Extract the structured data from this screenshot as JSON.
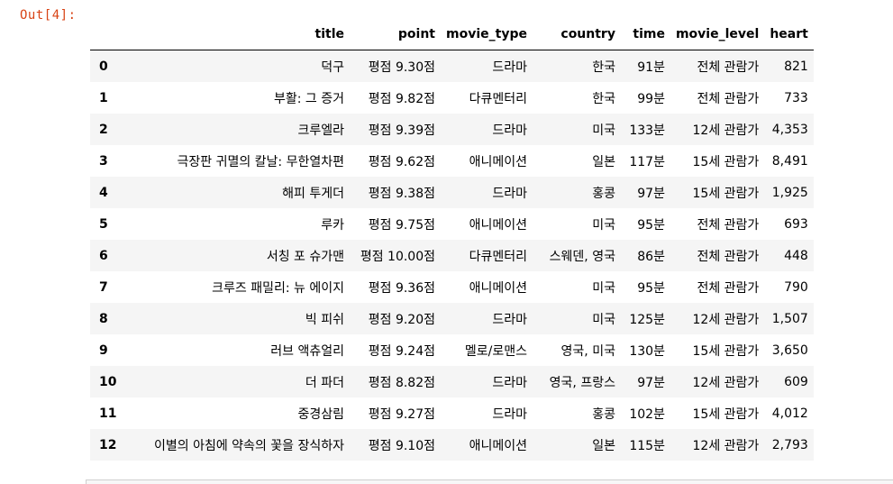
{
  "output_prompt": "Out[4]:",
  "columns": [
    "title",
    "point",
    "movie_type",
    "country",
    "time",
    "movie_level",
    "heart"
  ],
  "rows": [
    {
      "index": "0",
      "title": "덕구",
      "point": "평점 9.30점",
      "movie_type": "드라마",
      "country": "한국",
      "time": "91분",
      "movie_level": "전체 관람가",
      "heart": "821"
    },
    {
      "index": "1",
      "title": "부활: 그 증거",
      "point": "평점 9.82점",
      "movie_type": "다큐멘터리",
      "country": "한국",
      "time": "99분",
      "movie_level": "전체 관람가",
      "heart": "733"
    },
    {
      "index": "2",
      "title": "크루엘라",
      "point": "평점 9.39점",
      "movie_type": "드라마",
      "country": "미국",
      "time": "133분",
      "movie_level": "12세 관람가",
      "heart": "4,353"
    },
    {
      "index": "3",
      "title": "극장판 귀멸의 칼날: 무한열차편",
      "point": "평점 9.62점",
      "movie_type": "애니메이션",
      "country": "일본",
      "time": "117분",
      "movie_level": "15세 관람가",
      "heart": "8,491"
    },
    {
      "index": "4",
      "title": "해피 투게더",
      "point": "평점 9.38점",
      "movie_type": "드라마",
      "country": "홍콩",
      "time": "97분",
      "movie_level": "15세 관람가",
      "heart": "1,925"
    },
    {
      "index": "5",
      "title": "루카",
      "point": "평점 9.75점",
      "movie_type": "애니메이션",
      "country": "미국",
      "time": "95분",
      "movie_level": "전체 관람가",
      "heart": "693"
    },
    {
      "index": "6",
      "title": "서칭 포 슈가맨",
      "point": "평점 10.00점",
      "movie_type": "다큐멘터리",
      "country": "스웨덴, 영국",
      "time": "86분",
      "movie_level": "전체 관람가",
      "heart": "448"
    },
    {
      "index": "7",
      "title": "크루즈 패밀리: 뉴 에이지",
      "point": "평점 9.36점",
      "movie_type": "애니메이션",
      "country": "미국",
      "time": "95분",
      "movie_level": "전체 관람가",
      "heart": "790"
    },
    {
      "index": "8",
      "title": "빅 피쉬",
      "point": "평점 9.20점",
      "movie_type": "드라마",
      "country": "미국",
      "time": "125분",
      "movie_level": "12세 관람가",
      "heart": "1,507"
    },
    {
      "index": "9",
      "title": "러브 액츄얼리",
      "point": "평점 9.24점",
      "movie_type": "멜로/로맨스",
      "country": "영국, 미국",
      "time": "130분",
      "movie_level": "15세 관람가",
      "heart": "3,650"
    },
    {
      "index": "10",
      "title": "더 파더",
      "point": "평점 8.82점",
      "movie_type": "드라마",
      "country": "영국, 프랑스",
      "time": "97분",
      "movie_level": "12세 관람가",
      "heart": "609"
    },
    {
      "index": "11",
      "title": "중경삼림",
      "point": "평점 9.27점",
      "movie_type": "드라마",
      "country": "홍콩",
      "time": "102분",
      "movie_level": "15세 관람가",
      "heart": "4,012"
    },
    {
      "index": "12",
      "title": "이별의 아침에 약속의 꽃을 장식하자",
      "point": "평점 9.10점",
      "movie_type": "애니메이션",
      "country": "일본",
      "time": "115분",
      "movie_level": "12세 관람가",
      "heart": "2,793"
    }
  ]
}
